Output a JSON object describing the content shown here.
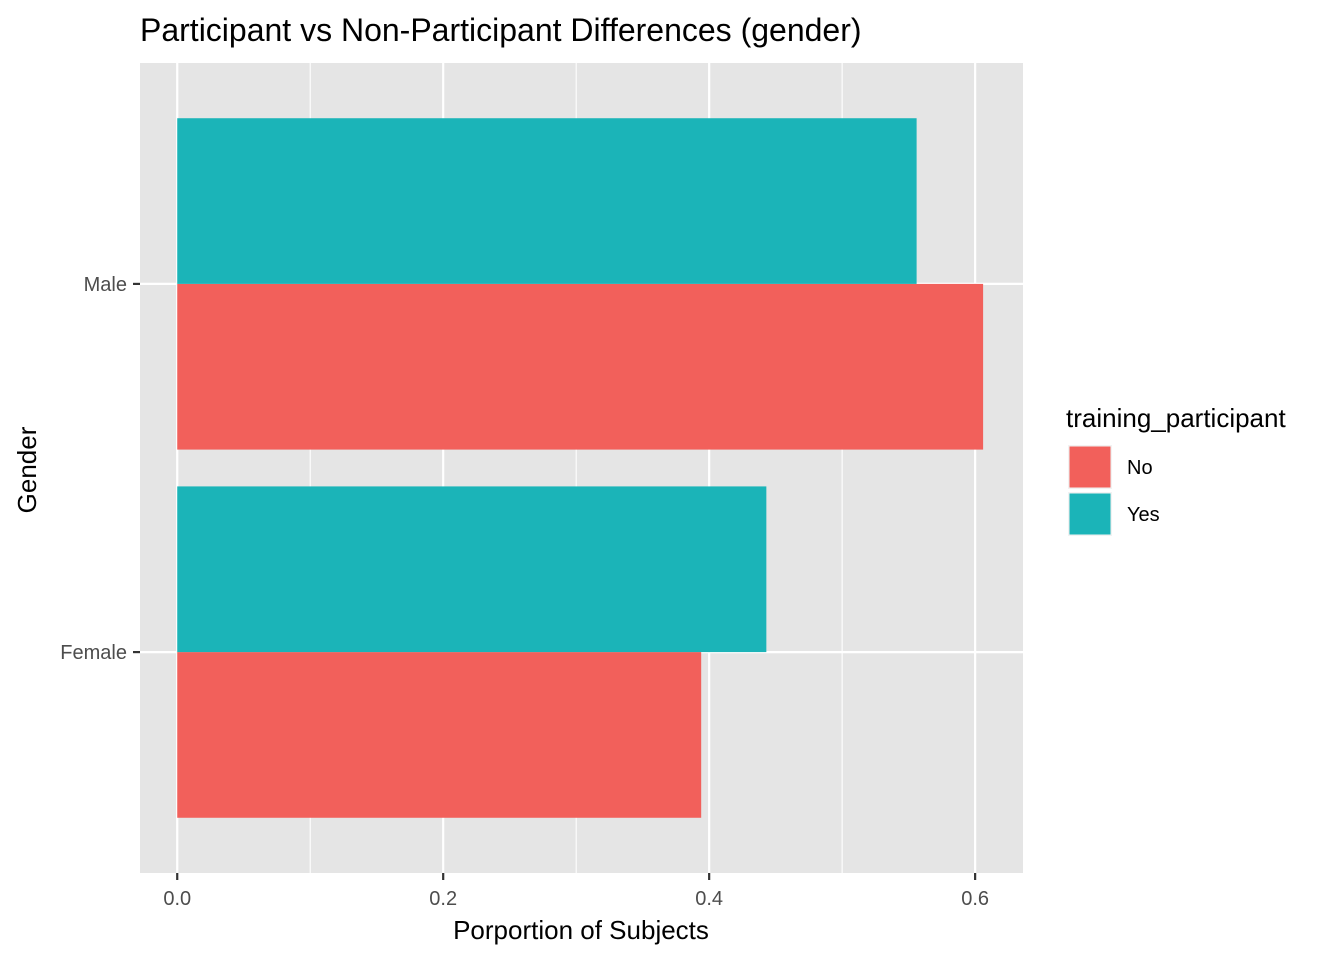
{
  "chart_data": {
    "type": "bar",
    "orientation": "horizontal",
    "title": "Participant vs Non-Participant Differences (gender)",
    "xlabel": "Porportion of Subjects",
    "ylabel": "Gender",
    "categories": [
      "Female",
      "Male"
    ],
    "xlim": [
      -0.028,
      0.636
    ],
    "x_ticks": [
      0.0,
      0.2,
      0.4,
      0.6
    ],
    "x_tick_labels": [
      "0.0",
      "0.2",
      "0.4",
      "0.6"
    ],
    "grid": true,
    "panel_background": "#e5e5e5",
    "grid_color": "#ffffff",
    "legend": {
      "title": "training_participant",
      "position": "right"
    },
    "series": [
      {
        "name": "No",
        "color": "#f2605b",
        "values": [
          0.394,
          0.606
        ]
      },
      {
        "name": "Yes",
        "color": "#1bb4b8",
        "values": [
          0.443,
          0.556
        ]
      }
    ]
  }
}
